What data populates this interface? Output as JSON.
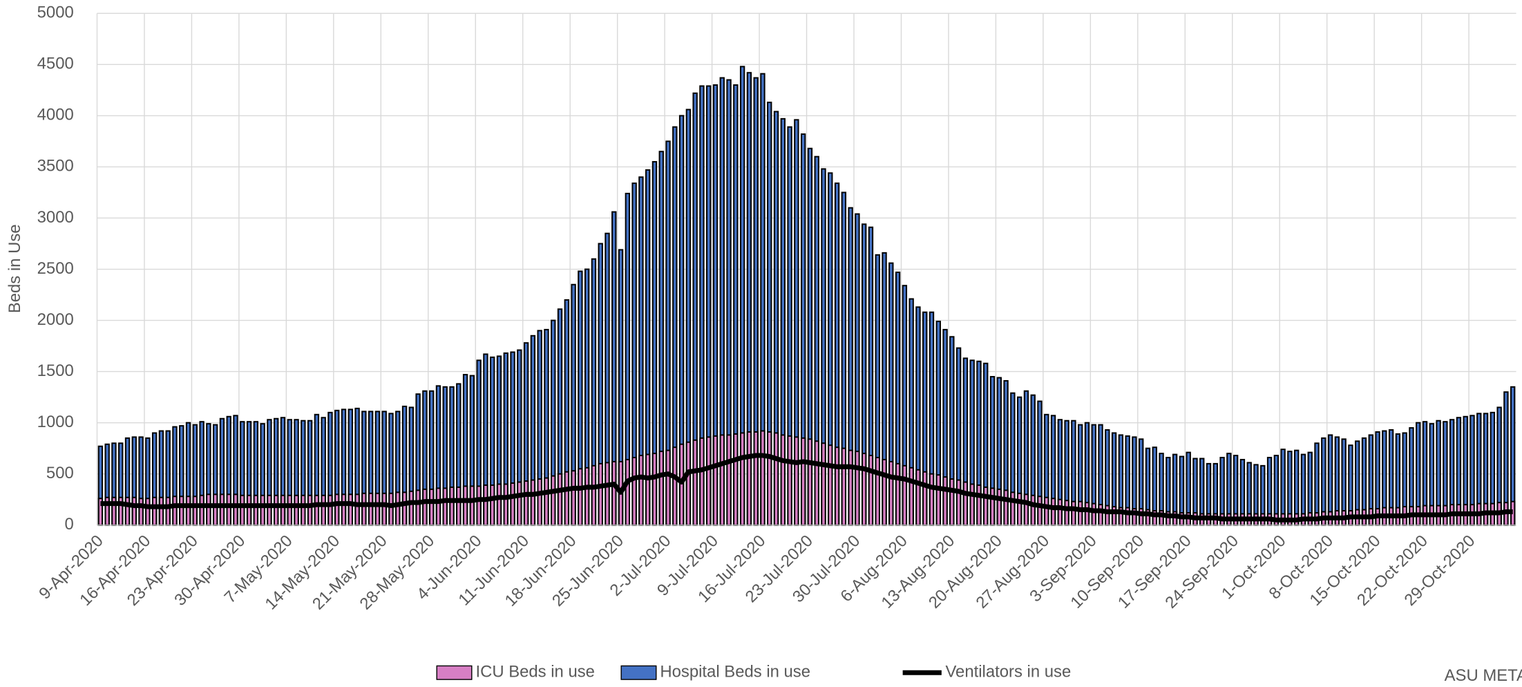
{
  "chart_data": {
    "type": "bar",
    "y_label": "Beds in Use",
    "watermark": "ASU META",
    "ylim": [
      0,
      5000
    ],
    "yticks": [
      0,
      500,
      1000,
      1500,
      2000,
      2500,
      3000,
      3500,
      4000,
      4500,
      5000
    ],
    "grid": true,
    "legend": "bottom",
    "categories": [
      "9-Apr-2020",
      null,
      null,
      null,
      null,
      null,
      null,
      "16-Apr-2020",
      null,
      null,
      null,
      null,
      null,
      null,
      "23-Apr-2020",
      null,
      null,
      null,
      null,
      null,
      null,
      "30-Apr-2020",
      null,
      null,
      null,
      null,
      null,
      null,
      "7-May-2020",
      null,
      null,
      null,
      null,
      null,
      null,
      "14-May-2020",
      null,
      null,
      null,
      null,
      null,
      null,
      "21-May-2020",
      null,
      null,
      null,
      null,
      null,
      null,
      "28-May-2020",
      null,
      null,
      null,
      null,
      null,
      null,
      "4-Jun-2020",
      null,
      null,
      null,
      null,
      null,
      null,
      "11-Jun-2020",
      null,
      null,
      null,
      null,
      null,
      null,
      "18-Jun-2020",
      null,
      null,
      null,
      null,
      null,
      null,
      "25-Jun-2020",
      null,
      null,
      null,
      null,
      null,
      null,
      "2-Jul-2020",
      null,
      null,
      null,
      null,
      null,
      null,
      "9-Jul-2020",
      null,
      null,
      null,
      null,
      null,
      null,
      "16-Jul-2020",
      null,
      null,
      null,
      null,
      null,
      null,
      "23-Jul-2020",
      null,
      null,
      null,
      null,
      null,
      null,
      "30-Jul-2020",
      null,
      null,
      null,
      null,
      null,
      null,
      "6-Aug-2020",
      null,
      null,
      null,
      null,
      null,
      null,
      "13-Aug-2020",
      null,
      null,
      null,
      null,
      null,
      null,
      "20-Aug-2020",
      null,
      null,
      null,
      null,
      null,
      null,
      "27-Aug-2020",
      null,
      null,
      null,
      null,
      null,
      null,
      "3-Sep-2020",
      null,
      null,
      null,
      null,
      null,
      null,
      "10-Sep-2020",
      null,
      null,
      null,
      null,
      null,
      null,
      "17-Sep-2020",
      null,
      null,
      null,
      null,
      null,
      null,
      "24-Sep-2020",
      null,
      null,
      null,
      null,
      null,
      null,
      "1-Oct-2020",
      null,
      null,
      null,
      null,
      null,
      null,
      "8-Oct-2020",
      null,
      null,
      null,
      null,
      null,
      null,
      "15-Oct-2020",
      null,
      null,
      null,
      null,
      null,
      null,
      "22-Oct-2020",
      null,
      null,
      null,
      null,
      null,
      null,
      "29-Oct-2020",
      null,
      null,
      null,
      null,
      null,
      null
    ],
    "series": [
      {
        "name": "ICU Beds in use",
        "type": "bar",
        "color": "#d77fc4",
        "values": [
          260,
          270,
          270,
          270,
          270,
          270,
          260,
          260,
          270,
          270,
          270,
          280,
          280,
          280,
          280,
          290,
          300,
          300,
          300,
          300,
          300,
          290,
          290,
          290,
          290,
          290,
          290,
          290,
          290,
          290,
          290,
          290,
          290,
          290,
          290,
          300,
          300,
          300,
          300,
          310,
          310,
          310,
          310,
          310,
          320,
          320,
          330,
          340,
          350,
          350,
          360,
          360,
          370,
          370,
          380,
          380,
          380,
          390,
          390,
          400,
          400,
          410,
          420,
          430,
          440,
          450,
          460,
          480,
          500,
          520,
          530,
          550,
          560,
          580,
          600,
          610,
          620,
          620,
          640,
          660,
          680,
          690,
          700,
          720,
          730,
          760,
          790,
          810,
          830,
          850,
          860,
          870,
          880,
          880,
          890,
          900,
          910,
          910,
          920,
          910,
          900,
          880,
          870,
          860,
          850,
          840,
          820,
          800,
          780,
          760,
          750,
          730,
          720,
          700,
          680,
          660,
          640,
          620,
          600,
          580,
          560,
          540,
          520,
          500,
          490,
          470,
          450,
          440,
          420,
          400,
          390,
          370,
          360,
          350,
          340,
          320,
          310,
          300,
          290,
          280,
          270,
          260,
          250,
          240,
          230,
          230,
          220,
          210,
          200,
          190,
          180,
          170,
          170,
          160,
          160,
          150,
          140,
          140,
          130,
          130,
          120,
          120,
          120,
          110,
          110,
          110,
          110,
          110,
          110,
          110,
          110,
          110,
          110,
          110,
          110,
          110,
          110,
          110,
          110,
          120,
          120,
          130,
          130,
          140,
          140,
          140,
          150,
          150,
          160,
          160,
          170,
          170,
          170,
          180,
          180,
          180,
          190,
          190,
          190,
          190,
          200,
          200,
          200,
          200,
          210,
          210,
          210,
          220,
          220,
          230
        ]
      },
      {
        "name": "Hospital Beds in use",
        "type": "bar",
        "color": "#4472c4",
        "values": [
          770,
          790,
          800,
          800,
          850,
          860,
          860,
          850,
          900,
          920,
          920,
          960,
          970,
          1000,
          980,
          1010,
          990,
          980,
          1040,
          1060,
          1070,
          1010,
          1010,
          1010,
          990,
          1030,
          1040,
          1050,
          1030,
          1030,
          1020,
          1020,
          1080,
          1050,
          1100,
          1120,
          1130,
          1130,
          1140,
          1110,
          1110,
          1110,
          1110,
          1090,
          1110,
          1160,
          1150,
          1280,
          1310,
          1310,
          1360,
          1350,
          1350,
          1380,
          1470,
          1460,
          1610,
          1670,
          1640,
          1650,
          1680,
          1690,
          1710,
          1780,
          1850,
          1900,
          1910,
          2000,
          2110,
          2200,
          2350,
          2480,
          2500,
          2600,
          2750,
          2850,
          3060,
          2690,
          3240,
          3340,
          3400,
          3470,
          3550,
          3650,
          3750,
          3890,
          4000,
          4060,
          4220,
          4290,
          4290,
          4300,
          4370,
          4350,
          4300,
          4480,
          4420,
          4370,
          4410,
          4130,
          4040,
          3970,
          3890,
          3960,
          3820,
          3680,
          3600,
          3480,
          3440,
          3340,
          3250,
          3100,
          3040,
          2940,
          2910,
          2640,
          2660,
          2560,
          2470,
          2340,
          2210,
          2130,
          2080,
          2080,
          1990,
          1910,
          1840,
          1730,
          1630,
          1610,
          1600,
          1580,
          1450,
          1440,
          1410,
          1290,
          1250,
          1310,
          1270,
          1210,
          1080,
          1070,
          1030,
          1020,
          1020,
          980,
          1000,
          980,
          980,
          930,
          900,
          880,
          870,
          860,
          840,
          750,
          760,
          700,
          660,
          690,
          670,
          710,
          650,
          650,
          600,
          600,
          660,
          700,
          680,
          640,
          610,
          590,
          580,
          660,
          680,
          740,
          720,
          730,
          690,
          710,
          800,
          850,
          880,
          860,
          840,
          780,
          820,
          850,
          880,
          910,
          920,
          930,
          890,
          900,
          950,
          1000,
          1010,
          990,
          1020,
          1010,
          1030,
          1050,
          1060,
          1070,
          1090,
          1090,
          1100,
          1150,
          1300,
          1350
        ]
      },
      {
        "name": "Ventilators in use",
        "type": "line",
        "color": "#000000",
        "values": [
          210,
          210,
          210,
          210,
          200,
          190,
          190,
          180,
          180,
          180,
          180,
          190,
          190,
          190,
          190,
          190,
          190,
          190,
          190,
          190,
          190,
          190,
          190,
          190,
          190,
          190,
          190,
          190,
          190,
          190,
          190,
          190,
          200,
          200,
          200,
          210,
          210,
          210,
          200,
          200,
          200,
          200,
          200,
          190,
          200,
          210,
          220,
          220,
          230,
          230,
          230,
          240,
          240,
          240,
          240,
          240,
          250,
          250,
          260,
          270,
          270,
          280,
          290,
          300,
          300,
          310,
          320,
          330,
          340,
          350,
          360,
          360,
          370,
          370,
          380,
          390,
          400,
          320,
          430,
          460,
          470,
          460,
          470,
          490,
          500,
          470,
          420,
          520,
          530,
          540,
          560,
          580,
          600,
          620,
          640,
          660,
          670,
          680,
          680,
          670,
          650,
          630,
          620,
          610,
          620,
          610,
          600,
          590,
          580,
          570,
          570,
          570,
          560,
          550,
          530,
          510,
          490,
          470,
          460,
          450,
          430,
          410,
          390,
          370,
          360,
          350,
          340,
          330,
          310,
          300,
          290,
          280,
          270,
          260,
          250,
          240,
          230,
          220,
          200,
          190,
          180,
          170,
          170,
          160,
          160,
          150,
          150,
          140,
          140,
          130,
          130,
          130,
          120,
          120,
          110,
          110,
          100,
          100,
          90,
          90,
          80,
          80,
          70,
          70,
          70,
          70,
          60,
          60,
          60,
          60,
          60,
          60,
          60,
          60,
          50,
          50,
          50,
          50,
          60,
          60,
          60,
          70,
          70,
          70,
          70,
          80,
          80,
          80,
          80,
          90,
          90,
          90,
          90,
          90,
          100,
          100,
          100,
          100,
          100,
          100,
          110,
          110,
          110,
          110,
          110,
          120,
          120,
          120,
          130,
          130
        ]
      }
    ]
  }
}
